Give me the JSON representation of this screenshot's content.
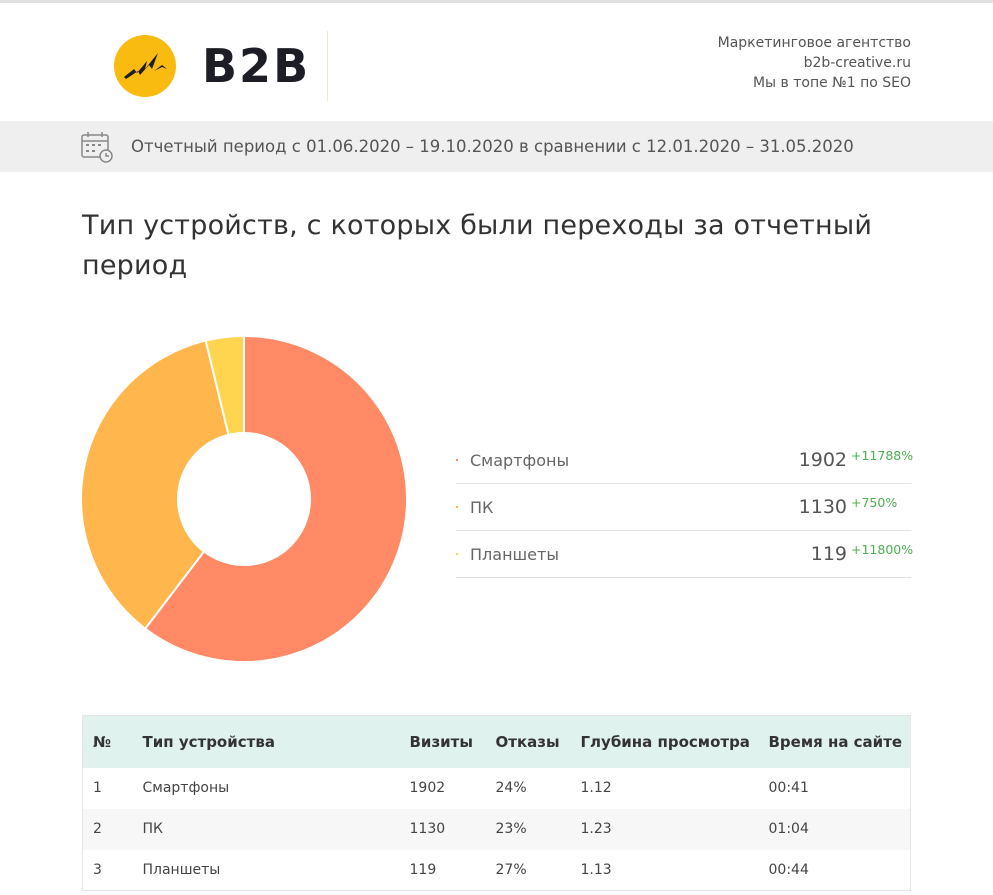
{
  "header": {
    "logo_text": "B2B",
    "agency_lines": [
      "Маркетинговое агентство",
      "b2b-creative.ru",
      "Мы в топе №1 по SEO"
    ]
  },
  "period": {
    "text": "Отчетный период с 01.06.2020 – 19.10.2020 в сравнении с 12.01.2020 – 31.05.2020"
  },
  "section": {
    "title": "Тип устройств, с которых были переходы за отчетный период"
  },
  "chart_data": {
    "type": "pie",
    "title": "Тип устройств, с которых были переходы за отчетный период",
    "categories": [
      "Смартфоны",
      "ПК",
      "Планшеты"
    ],
    "values": [
      1902,
      1130,
      119
    ],
    "deltas": [
      "+11788%",
      "+750%",
      "+11800%"
    ],
    "colors": [
      "#ff8a65",
      "#ffb74d",
      "#ffd54f"
    ],
    "donut": true
  },
  "table": {
    "headers": [
      "№",
      "Тип устройства",
      "Визиты",
      "Отказы",
      "Глубина просмотра",
      "Время на сайте"
    ],
    "rows": [
      [
        "1",
        "Смартфоны",
        "1902",
        "24%",
        "1.12",
        "00:41"
      ],
      [
        "2",
        "ПК",
        "1130",
        "23%",
        "1.23",
        "01:04"
      ],
      [
        "3",
        "Планшеты",
        "119",
        "27%",
        "1.13",
        "00:44"
      ]
    ]
  }
}
